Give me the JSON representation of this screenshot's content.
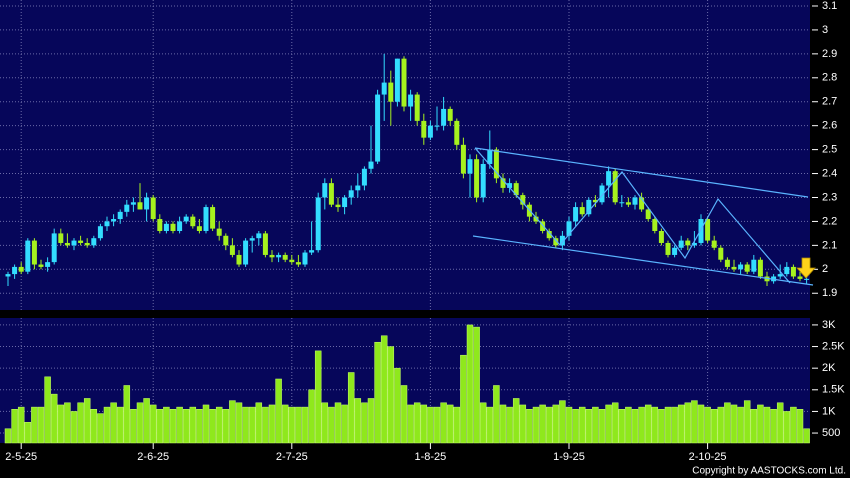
{
  "copyright": "Copyright by AASTOCKS.com Ltd.",
  "chart_data": [
    {
      "type": "candlestick",
      "up_color": "#33ddff",
      "down_color": "#a6f21e",
      "ylim": [
        1.83,
        3.125
      ],
      "yticks": [
        1.9,
        2,
        2.1,
        2.2,
        2.3,
        2.4,
        2.5,
        2.6,
        2.7,
        2.8,
        2.9,
        3,
        3.1
      ],
      "grid": true,
      "open": [
        1.97,
        1.98,
        2.01,
        1.99,
        2.12,
        2.02,
        2.01,
        2.03,
        2.15,
        2.11,
        2.1,
        2.12,
        2.11,
        2.1,
        2.13,
        2.18,
        2.2,
        2.21,
        2.24,
        2.27,
        2.28,
        2.25,
        2.3,
        2.21,
        2.16,
        2.19,
        2.16,
        2.2,
        2.22,
        2.18,
        2.16,
        2.26,
        2.17,
        2.14,
        2.1,
        2.06,
        2.02,
        2.12,
        2.13,
        2.15,
        2.06,
        2.05,
        2.06,
        2.04,
        2.03,
        2.02,
        2.07,
        2.08,
        2.3,
        2.36,
        2.27,
        2.26,
        2.3,
        2.33,
        2.35,
        2.42,
        2.45,
        2.73,
        2.78,
        2.7,
        2.88,
        2.68,
        2.73,
        2.62,
        2.55,
        2.6,
        2.6,
        2.67,
        2.62,
        2.52,
        2.4,
        2.46,
        2.3,
        2.44,
        2.5,
        2.38,
        2.34,
        2.36,
        2.31,
        2.27,
        2.22,
        2.2,
        2.16,
        2.13,
        2.1,
        2.14,
        2.2,
        2.26,
        2.23,
        2.29,
        2.28,
        2.35,
        2.41,
        2.28,
        2.28,
        2.27,
        2.3,
        2.25,
        2.21,
        2.16,
        2.11,
        2.06,
        2.09,
        2.12,
        2.1,
        2.11,
        2.21,
        2.12,
        2.09,
        2.04,
        2.01,
        2.0,
        2.02,
        1.99,
        2.04,
        1.97,
        1.95,
        1.97,
        1.98,
        2.01,
        1.97,
        1.96
      ],
      "high": [
        1.99,
        2.02,
        2.03,
        2.13,
        2.13,
        2.04,
        2.05,
        2.17,
        2.17,
        2.15,
        2.13,
        2.14,
        2.13,
        2.14,
        2.19,
        2.22,
        2.23,
        2.25,
        2.29,
        2.3,
        2.36,
        2.32,
        2.31,
        2.23,
        2.2,
        2.2,
        2.22,
        2.23,
        2.23,
        2.21,
        2.27,
        2.27,
        2.2,
        2.15,
        2.13,
        2.08,
        2.13,
        2.14,
        2.16,
        2.16,
        2.08,
        2.07,
        2.07,
        2.06,
        2.06,
        2.08,
        2.2,
        2.32,
        2.38,
        2.38,
        2.3,
        2.31,
        2.35,
        2.4,
        2.43,
        2.6,
        2.75,
        2.9,
        2.83,
        2.88,
        2.89,
        2.75,
        2.74,
        2.65,
        2.62,
        2.68,
        2.72,
        2.68,
        2.63,
        2.55,
        2.48,
        2.48,
        2.46,
        2.58,
        2.51,
        2.4,
        2.38,
        2.37,
        2.32,
        2.28,
        2.24,
        2.21,
        2.17,
        2.14,
        2.16,
        2.22,
        2.28,
        2.28,
        2.3,
        2.31,
        2.36,
        2.43,
        2.42,
        2.31,
        2.3,
        2.31,
        2.32,
        2.26,
        2.22,
        2.17,
        2.12,
        2.1,
        2.14,
        2.13,
        2.16,
        2.23,
        2.22,
        2.14,
        2.1,
        2.05,
        2.04,
        2.03,
        2.03,
        2.06,
        2.05,
        1.99,
        1.98,
        2.02,
        2.03,
        2.02,
        1.99,
        1.97
      ],
      "low": [
        1.93,
        1.96,
        1.98,
        1.98,
        2.0,
        2.0,
        1.99,
        2.02,
        2.1,
        2.09,
        2.08,
        2.1,
        2.09,
        2.09,
        2.12,
        2.16,
        2.18,
        2.19,
        2.22,
        2.24,
        2.25,
        2.2,
        2.2,
        2.15,
        2.15,
        2.15,
        2.15,
        2.19,
        2.17,
        2.15,
        2.15,
        2.16,
        2.12,
        2.08,
        2.05,
        2.01,
        2.01,
        2.07,
        2.1,
        2.05,
        2.03,
        2.03,
        2.03,
        2.02,
        2.01,
        2.01,
        2.06,
        2.07,
        2.25,
        2.26,
        2.24,
        2.23,
        2.27,
        2.3,
        2.33,
        2.4,
        2.44,
        2.62,
        2.6,
        2.68,
        2.66,
        2.62,
        2.6,
        2.52,
        2.54,
        2.58,
        2.58,
        2.6,
        2.5,
        2.38,
        2.3,
        2.28,
        2.28,
        2.42,
        2.36,
        2.32,
        2.32,
        2.3,
        2.25,
        2.2,
        2.19,
        2.15,
        2.12,
        2.09,
        2.08,
        2.12,
        2.18,
        2.22,
        2.22,
        2.26,
        2.27,
        2.3,
        2.27,
        2.26,
        2.26,
        2.25,
        2.24,
        2.2,
        2.15,
        2.1,
        2.05,
        2.05,
        2.08,
        2.08,
        2.09,
        2.1,
        2.11,
        2.08,
        2.03,
        2.0,
        1.99,
        1.98,
        1.98,
        1.98,
        1.96,
        1.93,
        1.94,
        1.96,
        1.97,
        1.96,
        1.95,
        1.94
      ],
      "close": [
        1.98,
        2.01,
        1.99,
        2.12,
        2.02,
        2.01,
        2.03,
        2.15,
        2.11,
        2.1,
        2.12,
        2.11,
        2.1,
        2.13,
        2.18,
        2.2,
        2.21,
        2.24,
        2.27,
        2.28,
        2.25,
        2.3,
        2.21,
        2.16,
        2.19,
        2.16,
        2.2,
        2.22,
        2.18,
        2.16,
        2.26,
        2.17,
        2.14,
        2.1,
        2.06,
        2.02,
        2.12,
        2.13,
        2.15,
        2.06,
        2.05,
        2.06,
        2.04,
        2.03,
        2.02,
        2.07,
        2.08,
        2.3,
        2.36,
        2.27,
        2.26,
        2.3,
        2.33,
        2.35,
        2.42,
        2.45,
        2.73,
        2.78,
        2.7,
        2.88,
        2.68,
        2.73,
        2.62,
        2.55,
        2.6,
        2.6,
        2.67,
        2.62,
        2.52,
        2.4,
        2.46,
        2.3,
        2.44,
        2.5,
        2.38,
        2.34,
        2.36,
        2.31,
        2.27,
        2.22,
        2.2,
        2.16,
        2.13,
        2.1,
        2.14,
        2.2,
        2.26,
        2.23,
        2.29,
        2.28,
        2.35,
        2.41,
        2.28,
        2.28,
        2.27,
        2.3,
        2.25,
        2.21,
        2.16,
        2.11,
        2.06,
        2.09,
        2.12,
        2.1,
        2.11,
        2.21,
        2.12,
        2.09,
        2.04,
        2.01,
        2.0,
        2.02,
        1.99,
        2.04,
        1.97,
        1.95,
        1.97,
        1.98,
        2.01,
        1.97,
        1.96,
        1.96
      ]
    },
    {
      "type": "bar",
      "color": "#8fe81c",
      "ylim": [
        270,
        3160
      ],
      "yticks": [
        {
          "value": 500,
          "label": "500"
        },
        {
          "value": 1000,
          "label": "1K"
        },
        {
          "value": 1500,
          "label": "1.5K"
        },
        {
          "value": 2000,
          "label": "2K"
        },
        {
          "value": 2500,
          "label": "2.5K"
        },
        {
          "value": 3000,
          "label": "3K"
        }
      ],
      "grid": true,
      "categories": [
        null,
        null,
        "2-5-25",
        null,
        null,
        null,
        null,
        null,
        null,
        null,
        null,
        null,
        null,
        null,
        null,
        null,
        null,
        null,
        null,
        null,
        null,
        null,
        "2-6-25",
        null,
        null,
        null,
        null,
        null,
        null,
        null,
        null,
        null,
        null,
        null,
        null,
        null,
        null,
        null,
        null,
        null,
        null,
        null,
        null,
        "2-7-25",
        null,
        null,
        null,
        null,
        null,
        null,
        null,
        null,
        null,
        null,
        null,
        null,
        null,
        null,
        null,
        null,
        null,
        null,
        null,
        null,
        "1-8-25",
        null,
        null,
        null,
        null,
        null,
        null,
        null,
        null,
        null,
        null,
        null,
        null,
        null,
        null,
        null,
        null,
        null,
        null,
        null,
        null,
        "1-9-25",
        null,
        null,
        null,
        null,
        null,
        null,
        null,
        null,
        null,
        null,
        null,
        null,
        null,
        null,
        null,
        null,
        null,
        null,
        null,
        null,
        "2-10-25",
        null,
        null,
        null,
        null,
        null,
        null,
        null,
        null,
        null,
        null,
        null,
        null,
        null,
        null,
        null
      ],
      "values": [
        600,
        1050,
        1100,
        750,
        1100,
        1100,
        1800,
        1400,
        1150,
        1200,
        1000,
        1200,
        1300,
        1050,
        950,
        1100,
        1200,
        1100,
        1600,
        1050,
        1200,
        1300,
        1150,
        1050,
        1100,
        1050,
        1100,
        1050,
        1100,
        1050,
        1150,
        1050,
        1100,
        1050,
        1250,
        1200,
        1100,
        1100,
        1200,
        1100,
        1150,
        1750,
        1150,
        1100,
        1100,
        1100,
        1500,
        2400,
        1200,
        1100,
        1200,
        1150,
        1900,
        1300,
        1200,
        1300,
        2600,
        2750,
        2500,
        2000,
        1600,
        1150,
        1200,
        1150,
        1100,
        1100,
        1200,
        1150,
        1100,
        2300,
        3000,
        2950,
        1200,
        1100,
        1600,
        1150,
        1100,
        1300,
        1150,
        1050,
        1100,
        1150,
        1100,
        1150,
        1250,
        1100,
        1050,
        1100,
        1050,
        1100,
        1050,
        1150,
        1200,
        1050,
        1100,
        1050,
        1100,
        1150,
        1100,
        1050,
        1100,
        1100,
        1150,
        1200,
        1250,
        1150,
        1100,
        1050,
        1100,
        1200,
        1150,
        1100,
        1250,
        1050,
        1150,
        1100,
        1050,
        1200,
        1000,
        1100,
        1050,
        600
      ]
    }
  ]
}
